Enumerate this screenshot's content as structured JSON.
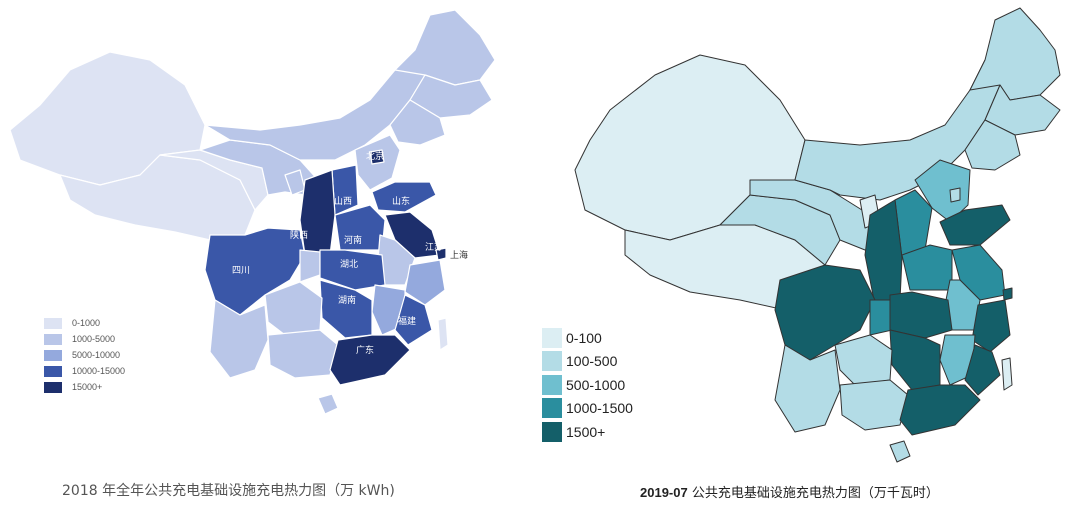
{
  "left_map": {
    "colors": {
      "c0": "#dde3f3",
      "c1": "#b9c6e8",
      "c2": "#94a9dd",
      "c3": "#3a57a8",
      "c4": "#1d2f6c",
      "border": "#ffffff"
    },
    "legend": [
      {
        "label": "0-1000",
        "color": "#dde3f3"
      },
      {
        "label": "1000-5000",
        "color": "#b9c6e8"
      },
      {
        "label": "5000-10000",
        "color": "#94a9dd"
      },
      {
        "label": "10000-15000",
        "color": "#3a57a8"
      },
      {
        "label": "15000+",
        "color": "#1d2f6c"
      }
    ],
    "province_labels": {
      "beijing": "北京",
      "shanxi": "山西",
      "shandong": "山东",
      "shaanxi": "陕西",
      "henan": "河南",
      "jiangsu": "江苏",
      "shanghai": "上海",
      "sichuan": "四川",
      "hubei": "湖北",
      "hunan": "湖南",
      "fujian": "福建",
      "guangdong": "广东"
    },
    "caption": "2018 年全年公共充电基础设施充电热力图（万 kWh)"
  },
  "right_map": {
    "colors": {
      "c0": "#dceef3",
      "c1": "#b3dce6",
      "c2": "#6fbfcf",
      "c3": "#2a8e9e",
      "c4": "#145f69",
      "border": "#333333"
    },
    "legend": [
      {
        "label": "0-100",
        "color": "#dceef3"
      },
      {
        "label": "100-500",
        "color": "#b3dce6"
      },
      {
        "label": "500-1000",
        "color": "#6fbfcf"
      },
      {
        "label": "1000-1500",
        "color": "#2a8e9e"
      },
      {
        "label": "1500+",
        "color": "#145f69"
      }
    ],
    "caption_bold": "2019-07",
    "caption_rest": " 公共充电基础设施充电热力图（万千瓦时）"
  }
}
